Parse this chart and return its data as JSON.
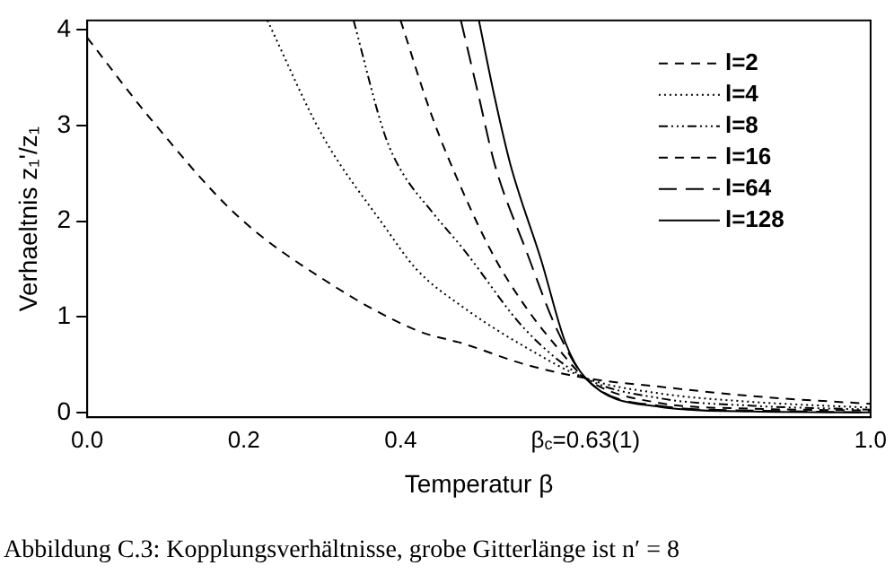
{
  "chart_data": {
    "type": "line",
    "xlabel": "Temperatur β",
    "ylabel": "Verhaeltnis z₁'/z₁",
    "xlim": [
      0,
      1
    ],
    "xticks": [
      {
        "value": 0,
        "label": "0.0"
      },
      0.2,
      0.4,
      {
        "value": 0.636,
        "label": "β$_{c}$=0.63(1)"
      },
      {
        "value": 1,
        "label": "1.0"
      }
    ],
    "ylim": [
      -0.05,
      4.1
    ],
    "yticks": [
      0,
      1,
      2,
      3,
      4
    ],
    "grid": false,
    "legend": "top right",
    "marker": "none",
    "annotations": [
      "Abbildung C.3: Kopplungsverhältnisse, grobe Gitterlänge ist n′ = 8"
    ],
    "series": [
      {
        "name": "l=2",
        "color": "#000000",
        "line_style": "dashed",
        "x": [
          0,
          0.08,
          0.19,
          0.3,
          0.42,
          0.48,
          0.56,
          0.636,
          0.73,
          0.85,
          1.0
        ],
        "values": [
          3.92,
          3.08,
          2.07,
          1.4,
          0.86,
          0.72,
          0.5,
          0.36,
          0.27,
          0.17,
          0.09
        ]
      },
      {
        "name": "l=4",
        "color": "#000000",
        "line_style": "dotted",
        "x": [
          0.23,
          0.3,
          0.38,
          0.42,
          0.48,
          0.56,
          0.636,
          0.73,
          0.85,
          1.0
        ],
        "values": [
          4.1,
          2.9,
          1.94,
          1.5,
          1.1,
          0.68,
          0.36,
          0.2,
          0.11,
          0.05
        ]
      },
      {
        "name": "l=8",
        "color": "#000000",
        "line_style": "dashdot",
        "x": [
          0.34,
          0.38,
          0.4,
          0.44,
          0.48,
          0.56,
          0.636,
          0.73,
          0.85,
          1.0
        ],
        "values": [
          4.1,
          2.9,
          2.54,
          2.1,
          1.71,
          0.86,
          0.36,
          0.15,
          0.07,
          0.03
        ]
      },
      {
        "name": "l=16",
        "color": "#000000",
        "line_style": "dashed",
        "x": [
          0.4,
          0.44,
          0.48,
          0.52,
          0.56,
          0.6,
          0.636,
          0.73,
          0.85,
          1.0
        ],
        "values": [
          4.1,
          3.1,
          2.3,
          1.62,
          1.1,
          0.68,
          0.36,
          0.1,
          0.04,
          0.02
        ]
      },
      {
        "name": "l=64",
        "color": "#000000",
        "line_style": "longdash",
        "x": [
          0.477,
          0.5,
          0.52,
          0.56,
          0.6,
          0.636,
          0.73,
          0.85,
          1.0
        ],
        "values": [
          4.1,
          3.3,
          2.6,
          1.7,
          0.86,
          0.36,
          0.07,
          0.02,
          0.0
        ]
      },
      {
        "name": "l=128",
        "color": "#000000",
        "line_style": "solid",
        "x": [
          0.5,
          0.52,
          0.54,
          0.58,
          0.61,
          0.636,
          0.73,
          0.85,
          1.0
        ],
        "values": [
          4.1,
          3.3,
          2.6,
          1.58,
          0.74,
          0.36,
          0.06,
          0.01,
          0.0
        ]
      }
    ]
  }
}
